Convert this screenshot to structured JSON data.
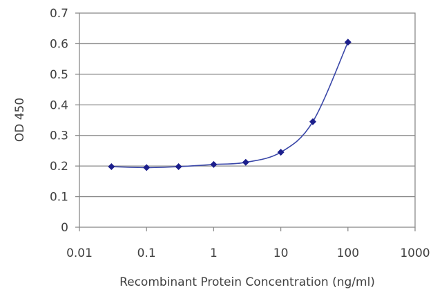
{
  "chart_data": {
    "type": "scatter",
    "title": "",
    "xlabel": "Recombinant Protein Concentration (ng/ml)",
    "ylabel": "OD 450",
    "x_scale": "log",
    "xlim": [
      0.01,
      1000
    ],
    "ylim": [
      0,
      0.7
    ],
    "x_ticks": [
      "0.01",
      "0.1",
      "1",
      "10",
      "100",
      "1000"
    ],
    "y_ticks": [
      "0",
      "0.1",
      "0.2",
      "0.3",
      "0.4",
      "0.5",
      "0.6",
      "0.7"
    ],
    "grid": "horizontal",
    "legend": "none",
    "fit_line": true,
    "series": [
      {
        "x": [
          0.03,
          0.1,
          0.3,
          1,
          3,
          10,
          30,
          100
        ],
        "y": [
          0.198,
          0.195,
          0.198,
          0.205,
          0.212,
          0.245,
          0.345,
          0.605
        ]
      }
    ],
    "colors": {
      "line": "#3a47a8",
      "marker": "#1c1f8c",
      "grid": "#8a8a8a"
    }
  }
}
